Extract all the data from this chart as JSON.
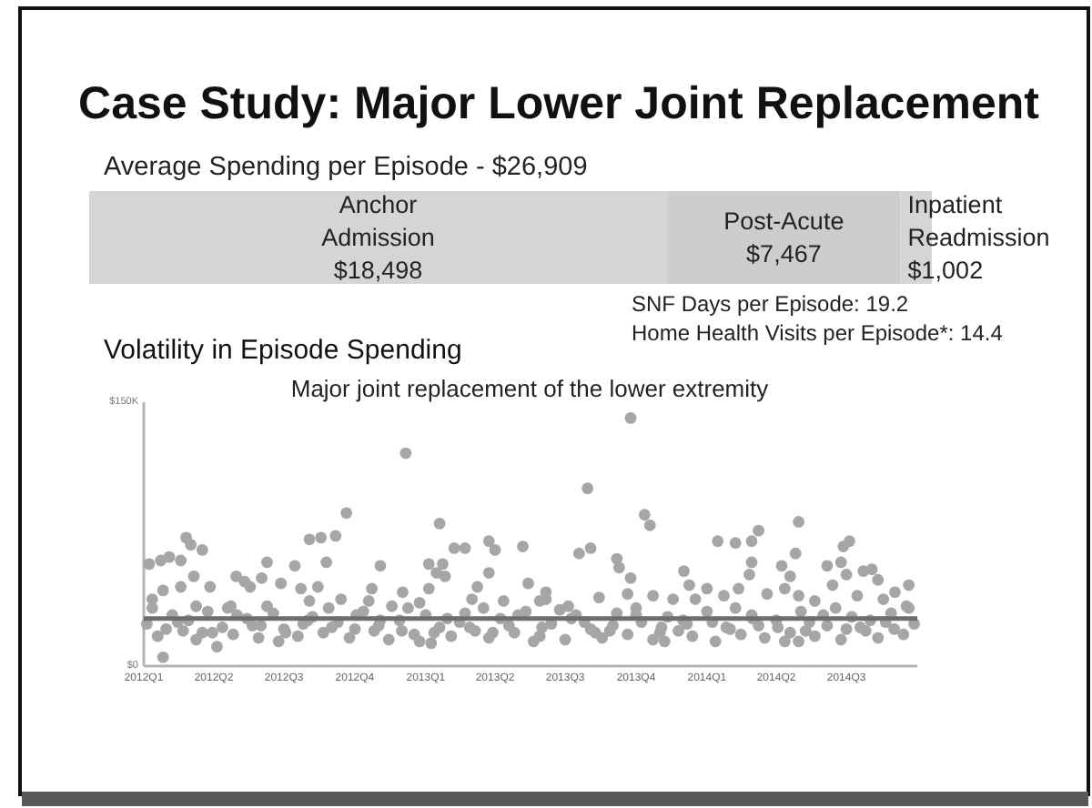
{
  "chart_data": [
    {
      "type": "bar",
      "title": "Case Study: Major Lower Joint Replacement",
      "subtitle": "Average Spending per Episode - $26,909",
      "orientation": "horizontal",
      "stacked": true,
      "categories": [
        null
      ],
      "series": [
        {
          "name": "Anchor Admission",
          "color": "#d5d5d5",
          "values": [
            18498
          ],
          "value_labels": [
            "$18,498"
          ]
        },
        {
          "name": "Post-Acute",
          "color": "#cdcdcd",
          "values": [
            7467
          ],
          "value_labels": [
            "$7,467"
          ]
        },
        {
          "name": "Inpatient Readmission",
          "color": "#d5d5d5",
          "values": [
            1002
          ],
          "value_labels": [
            "$1,002"
          ]
        }
      ],
      "annotations": [
        "SNF Days per Episode: 19.2",
        "Home Health Visits per Episode*: 14.4"
      ]
    },
    {
      "type": "scatter",
      "title": "Volatility in Episode Spending",
      "subtitle": "Major joint replacement of the lower extremity",
      "xlim": [
        "2012-01-01",
        "2014-10-01"
      ],
      "xticks": [
        {
          "value": "2012-01-01",
          "label": "2012Q1"
        },
        {
          "value": "2012-04-01",
          "label": "2012Q2"
        },
        {
          "value": "2012-07-01",
          "label": "2012Q3"
        },
        {
          "value": "2012-10-01",
          "label": "2012Q4"
        },
        {
          "value": "2013-01-01",
          "label": "2013Q1"
        },
        {
          "value": "2013-04-01",
          "label": "2013Q2"
        },
        {
          "value": "2013-07-01",
          "label": "2013Q3"
        },
        {
          "value": "2013-10-01",
          "label": "2013Q4"
        },
        {
          "value": "2014-01-01",
          "label": "2014Q1"
        },
        {
          "value": "2014-04-01",
          "label": "2014Q2"
        },
        {
          "value": "2014-07-01",
          "label": "2014Q3"
        }
      ],
      "ylim": [
        0,
        150000
      ],
      "yticks": [
        {
          "value": 0,
          "label": "$0"
        },
        {
          "value": 150000,
          "label": "$150K"
        }
      ],
      "marker": "circle",
      "ref_lines": [
        {
          "axis": "y",
          "value": 27000,
          "color": "#6e6e6e"
        }
      ],
      "series": [
        {
          "color": "#a6a6a6",
          "x": [
            "2012-01-08",
            "2012-01-23",
            "2012-02-03",
            "2012-02-18",
            "2012-02-25",
            "2012-03-02",
            "2012-03-17",
            "2012-06-09",
            "2012-07-15",
            "2012-08-03",
            "2012-08-18",
            "2012-09-06",
            "2012-08-25",
            "2012-09-20",
            "2012-11-03",
            "2012-12-06",
            "2013-01-19",
            "2013-02-07",
            "2013-02-21",
            "2013-03-24",
            "2013-04-01",
            "2013-05-07",
            "2013-01-05",
            "2013-01-23",
            "2012-01-26",
            "2012-02-18",
            "2012-03-06",
            "2012-03-27",
            "2012-04-30",
            "2012-05-11",
            "2012-05-18",
            "2012-06-02",
            "2012-06-27",
            "2012-07-23",
            "2012-08-14",
            "2012-10-23",
            "2012-12-02",
            "2013-01-05",
            "2013-01-15",
            "2013-01-26",
            "2013-03-09",
            "2013-03-24",
            "2013-05-14",
            "2013-06-06",
            "2012-01-12",
            "2012-03-09",
            "2012-04-23",
            "2012-06-09",
            "2012-08-03",
            "2012-09-13",
            "2012-10-19",
            "2012-11-18",
            "2012-12-24",
            "2013-03-02",
            "2013-04-12",
            "2013-05-29",
            "2012-01-26",
            "2012-04-05",
            "2012-12-24",
            "2013-09-24",
            "2013-07-30",
            "2013-10-12",
            "2013-10-19",
            "2013-07-19",
            "2013-08-03",
            "2013-09-06",
            "2013-09-09",
            "2013-09-24",
            "2013-12-02",
            "2013-12-09",
            "2014-01-01",
            "2014-01-15",
            "2014-02-07",
            "2014-02-28",
            "2014-03-09",
            "2014-02-28",
            "2014-02-25",
            "2014-02-11",
            "2014-04-08",
            "2014-04-26",
            "2014-04-30",
            "2014-04-19",
            "2014-04-12",
            "2014-06-06",
            "2014-06-24",
            "2014-06-27",
            "2014-07-05",
            "2014-06-13",
            "2014-07-01",
            "2014-07-23",
            "2014-08-03",
            "2014-08-11",
            "2014-09-02",
            "2014-09-20",
            "2013-06-06",
            "2013-07-05",
            "2013-08-14",
            "2013-09-20",
            "2013-10-23",
            "2013-11-18",
            "2013-12-17",
            "2014-01-23",
            "2014-03-20",
            "2014-04-30",
            "2014-05-21",
            "2014-07-15",
            "2014-08-18",
            "2014-09-17",
            "2013-11-07",
            "2014-04-30",
            "2012-01-05",
            "2012-01-19",
            "2012-02-07",
            "2012-02-21",
            "2012-03-09",
            "2012-03-24",
            "2012-04-12",
            "2012-04-26",
            "2012-05-14",
            "2012-05-29",
            "2012-06-17",
            "2012-07-01",
            "2012-07-19",
            "2012-08-07",
            "2012-08-21",
            "2012-09-09",
            "2012-09-24",
            "2012-10-12",
            "2012-10-26",
            "2012-11-14",
            "2012-11-28",
            "2012-12-17",
            "2013-01-01",
            "2013-01-08",
            "2013-01-19",
            "2013-02-03",
            "2013-02-21",
            "2013-03-06",
            "2013-03-24",
            "2013-04-08",
            "2013-04-26",
            "2013-05-11",
            "2013-05-29",
            "2013-06-13",
            "2013-07-01",
            "2013-07-15",
            "2013-08-03",
            "2013-08-18",
            "2013-09-06",
            "2013-09-20",
            "2013-10-08",
            "2013-10-23",
            "2013-11-11",
            "2013-11-25",
            "2013-12-13",
            "2014-01-01",
            "2014-01-12",
            "2014-01-26",
            "2014-02-14",
            "2014-02-28",
            "2014-03-17",
            "2014-04-01",
            "2014-04-19",
            "2014-05-03",
            "2014-05-21",
            "2014-06-06",
            "2014-06-24",
            "2014-07-08",
            "2014-07-26",
            "2014-08-11",
            "2014-08-28",
            "2014-09-13",
            "2014-09-27",
            "2012-01-12",
            "2012-02-14",
            "2012-03-17",
            "2012-04-19",
            "2012-05-21",
            "2012-06-24",
            "2012-07-26",
            "2012-08-28",
            "2012-10-01",
            "2012-11-03",
            "2012-12-09",
            "2013-01-12",
            "2013-02-14",
            "2013-03-17",
            "2013-04-19",
            "2013-05-21",
            "2013-06-24",
            "2013-07-26",
            "2013-08-28",
            "2013-10-01",
            "2013-11-03",
            "2013-12-06",
            "2014-01-08",
            "2014-02-07",
            "2014-03-09",
            "2014-04-12",
            "2014-05-14",
            "2014-06-17",
            "2014-07-19",
            "2014-08-21",
            "2014-09-20",
            "2012-01-30",
            "2012-02-28",
            "2012-03-30",
            "2012-05-01",
            "2012-06-01",
            "2012-07-03",
            "2012-08-01",
            "2012-09-01",
            "2012-10-03",
            "2012-11-01",
            "2012-12-01",
            "2013-01-29",
            "2013-02-27",
            "2013-03-29",
            "2013-05-01",
            "2013-06-01",
            "2013-07-09",
            "2013-08-09",
            "2013-09-01",
            "2013-10-01",
            "2013-11-01",
            "2013-12-01",
            "2014-01-31",
            "2014-03-01",
            "2014-04-03",
            "2014-05-09",
            "2014-06-01",
            "2014-07-01",
            "2014-08-01",
            "2014-09-01"
          ],
          "values": [
            58000,
            60000,
            62000,
            60000,
            73000,
            69000,
            66000,
            59000,
            57000,
            72000,
            73000,
            74000,
            59000,
            87000,
            57000,
            121000,
            81000,
            67000,
            67000,
            71000,
            66000,
            68000,
            58000,
            58000,
            43000,
            45000,
            51000,
            45000,
            51000,
            48000,
            45000,
            50000,
            47000,
            44000,
            45000,
            44000,
            42000,
            44000,
            53000,
            51000,
            45000,
            53000,
            47000,
            42000,
            38000,
            34000,
            34000,
            34000,
            37000,
            38000,
            37000,
            34000,
            36000,
            38000,
            37000,
            37000,
            5000,
            11000,
            14000,
            141000,
            101000,
            86000,
            80000,
            64000,
            67000,
            61000,
            56000,
            50000,
            54000,
            46000,
            44000,
            71000,
            70000,
            71000,
            77000,
            59000,
            52000,
            44000,
            57000,
            64000,
            82000,
            51000,
            44000,
            57000,
            59000,
            68000,
            71000,
            46000,
            52000,
            54000,
            55000,
            49000,
            42000,
            46000,
            38000,
            34000,
            39000,
            41000,
            40000,
            38000,
            38000,
            40000,
            41000,
            40000,
            37000,
            40000,
            38000,
            34000,
            14000,
            14000,
            24000,
            17000,
            29000,
            20000,
            15000,
            31000,
            22000,
            18000,
            27000,
            16000,
            30000,
            21000,
            17000,
            28000,
            19000,
            25000,
            16000,
            31000,
            20000,
            15000,
            26000,
            18000,
            29000,
            13000,
            22000,
            17000,
            30000,
            20000,
            16000,
            27000,
            19000,
            31000,
            17000,
            24000,
            15000,
            29000,
            21000,
            16000,
            30000,
            18000,
            25000,
            15000,
            28000,
            20000,
            17000,
            31000,
            14000,
            22000,
            18000,
            29000,
            16000,
            26000,
            19000,
            31000,
            17000,
            23000,
            15000,
            28000,
            20000,
            16000,
            30000,
            18000,
            24000,
            33000,
            25000,
            19000,
            33000,
            23000,
            14000,
            24000,
            33000,
            21000,
            26000,
            33000,
            19000,
            25000,
            33000,
            23000,
            14000,
            32000,
            25000,
            20000,
            33000,
            22000,
            24000,
            25000,
            33000,
            23000,
            14000,
            25000,
            33000,
            22000,
            25000,
            33000,
            21000,
            26000,
            19000,
            29000,
            23000,
            19000,
            26000,
            22000,
            29000,
            23000,
            20000,
            27000,
            22000,
            19000,
            29000,
            22000,
            27000,
            19000,
            23000,
            29000,
            19000,
            26000,
            21000,
            27000,
            22000,
            20000,
            29000,
            21000,
            26000,
            21000
          ]
        }
      ]
    }
  ]
}
